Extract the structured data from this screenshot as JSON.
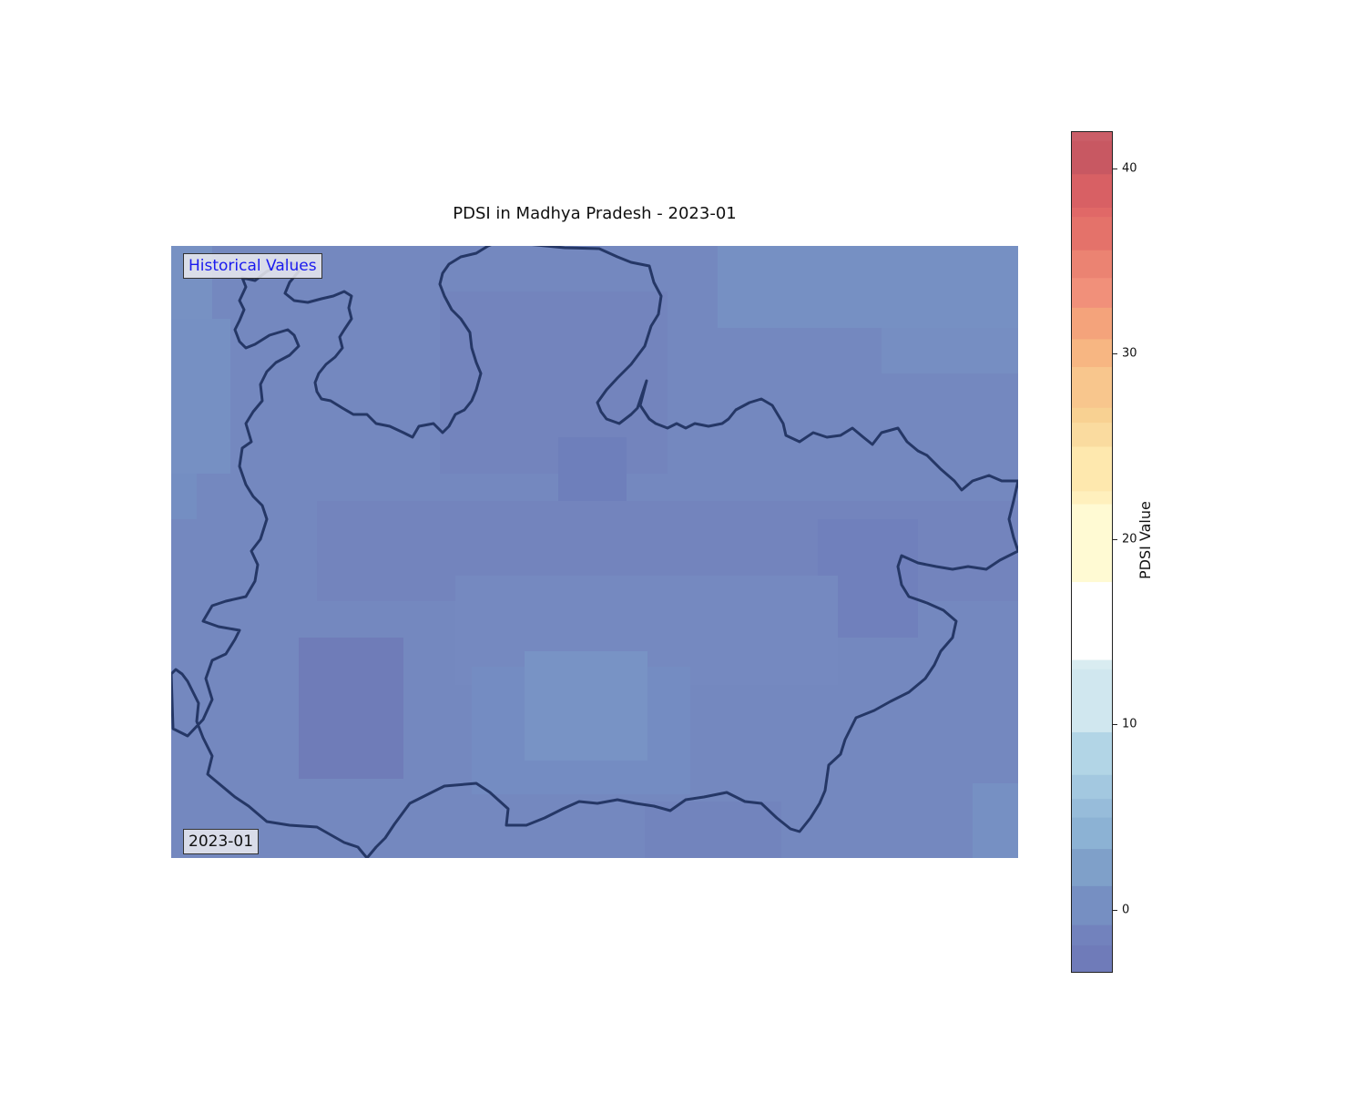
{
  "title": "PDSI in Madhya Pradesh - 2023-01",
  "legend_label": "Historical Values",
  "date_label": "2023-01",
  "colorbar": {
    "label": "PDSI Value",
    "min": -3.4,
    "max": 42,
    "ticks": [
      {
        "value": 0,
        "label": "0"
      },
      {
        "value": 10,
        "label": "10"
      },
      {
        "value": 20,
        "label": "20"
      },
      {
        "value": 30,
        "label": "30"
      },
      {
        "value": 40,
        "label": "40"
      }
    ],
    "bands": [
      {
        "from": -3.4,
        "to": -1.9,
        "color": "#6f7bb9"
      },
      {
        "from": -1.9,
        "to": -0.8,
        "color": "#7282bd"
      },
      {
        "from": -0.8,
        "to": 1.3,
        "color": "#768fc2"
      },
      {
        "from": 1.3,
        "to": 3.3,
        "color": "#7fa0c9"
      },
      {
        "from": 3.3,
        "to": 5.0,
        "color": "#8cb2d4"
      },
      {
        "from": 5.0,
        "to": 6.0,
        "color": "#97bcda"
      },
      {
        "from": 6.0,
        "to": 7.3,
        "color": "#a3c8e0"
      },
      {
        "from": 7.3,
        "to": 9.6,
        "color": "#b2d5e6"
      },
      {
        "from": 9.6,
        "to": 13.0,
        "color": "#d0e7ef"
      },
      {
        "from": 13.0,
        "to": 13.5,
        "color": "#d9ecf1"
      },
      {
        "from": 13.5,
        "to": 17.7,
        "color": "#ffffff"
      },
      {
        "from": 17.7,
        "to": 21.9,
        "color": "#fffad3"
      },
      {
        "from": 21.9,
        "to": 22.6,
        "color": "#fff0bd"
      },
      {
        "from": 22.6,
        "to": 25.0,
        "color": "#fee8ae"
      },
      {
        "from": 25.0,
        "to": 26.3,
        "color": "#fadb9f"
      },
      {
        "from": 26.3,
        "to": 27.1,
        "color": "#f8d192"
      },
      {
        "from": 27.1,
        "to": 29.3,
        "color": "#f8c68d"
      },
      {
        "from": 29.3,
        "to": 30.8,
        "color": "#f7b682"
      },
      {
        "from": 30.8,
        "to": 32.5,
        "color": "#f4a37b"
      },
      {
        "from": 32.5,
        "to": 34.1,
        "color": "#f1907a"
      },
      {
        "from": 34.1,
        "to": 35.6,
        "color": "#eb8372"
      },
      {
        "from": 35.6,
        "to": 37.4,
        "color": "#e4726a"
      },
      {
        "from": 37.4,
        "to": 37.9,
        "color": "#e06867"
      },
      {
        "from": 37.9,
        "to": 39.7,
        "color": "#d86064"
      },
      {
        "from": 39.7,
        "to": 41.5,
        "color": "#c85862"
      },
      {
        "from": 41.5,
        "to": 42,
        "color": "#cb5e68"
      }
    ]
  },
  "colors": {
    "map_base": "#7488bf",
    "boundary": "#253766"
  }
}
